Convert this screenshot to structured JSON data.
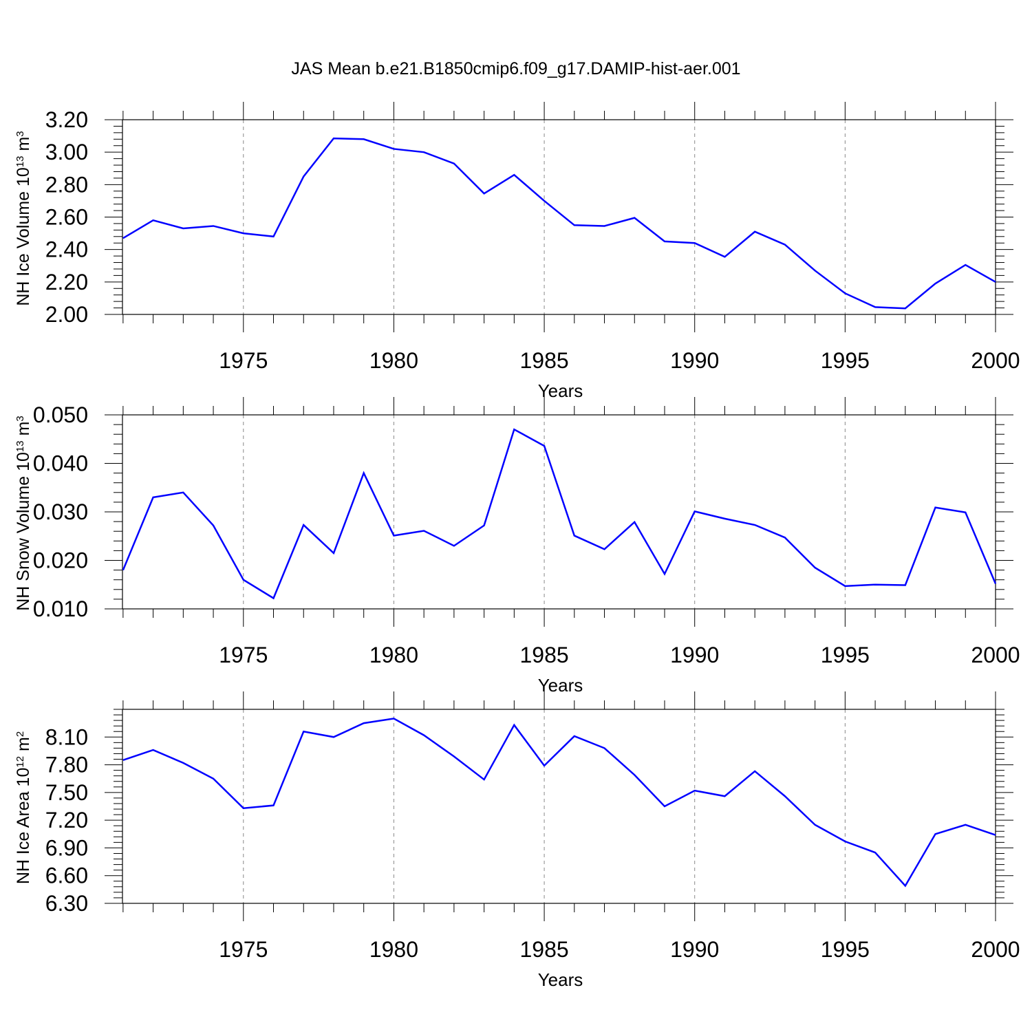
{
  "title": "JAS Mean b.e21.B1850cmip6.f09_g17.DAMIP-hist-aer.001",
  "line_color": "#0000ff",
  "chart_data": [
    {
      "type": "line",
      "ylabel": "NH Ice Volume 10",
      "ylabel_exp": "13",
      "ylabel_unit": " m",
      "ylabel_unit_exp": "3",
      "xlabel": "Years",
      "xlim": [
        1971,
        2000
      ],
      "ylim": [
        2.0,
        3.2
      ],
      "yticks": [
        "2.00",
        "2.20",
        "2.40",
        "2.60",
        "2.80",
        "3.00",
        "3.20"
      ],
      "xticks": [
        "1975",
        "1980",
        "1985",
        "1990",
        "1995",
        "2000"
      ],
      "x": [
        1971,
        1972,
        1973,
        1974,
        1975,
        1976,
        1977,
        1978,
        1979,
        1980,
        1981,
        1982,
        1983,
        1984,
        1985,
        1986,
        1987,
        1988,
        1989,
        1990,
        1991,
        1992,
        1993,
        1994,
        1995,
        1996,
        1997,
        1998,
        1999,
        2000
      ],
      "values": [
        2.47,
        2.58,
        2.53,
        2.545,
        2.5,
        2.48,
        2.85,
        3.085,
        3.08,
        3.02,
        3.0,
        2.93,
        2.745,
        2.86,
        2.7,
        2.55,
        2.545,
        2.595,
        2.45,
        2.44,
        2.355,
        2.51,
        2.43,
        2.27,
        2.13,
        2.045,
        2.037,
        2.19,
        2.305,
        2.2
      ]
    },
    {
      "type": "line",
      "ylabel": "NH Snow Volume 10",
      "ylabel_exp": "13",
      "ylabel_unit": " m",
      "ylabel_unit_exp": "3",
      "xlabel": "Years",
      "xlim": [
        1971,
        2000
      ],
      "ylim": [
        0.01,
        0.05
      ],
      "yticks": [
        "0.010",
        "0.020",
        "0.030",
        "0.040",
        "0.050"
      ],
      "xticks": [
        "1975",
        "1980",
        "1985",
        "1990",
        "1995",
        "2000"
      ],
      "x": [
        1971,
        1972,
        1973,
        1974,
        1975,
        1976,
        1977,
        1978,
        1979,
        1980,
        1981,
        1982,
        1983,
        1984,
        1985,
        1986,
        1987,
        1988,
        1989,
        1990,
        1991,
        1992,
        1993,
        1994,
        1995,
        1996,
        1997,
        1998,
        1999,
        2000
      ],
      "values": [
        0.018,
        0.033,
        0.034,
        0.0272,
        0.016,
        0.0122,
        0.0273,
        0.0215,
        0.038,
        0.0251,
        0.0261,
        0.023,
        0.0272,
        0.047,
        0.0436,
        0.0251,
        0.0223,
        0.0279,
        0.0172,
        0.0301,
        0.0286,
        0.0273,
        0.0247,
        0.0185,
        0.0147,
        0.015,
        0.0149,
        0.0309,
        0.0299,
        0.0152
      ]
    },
    {
      "type": "line",
      "ylabel": "NH Ice Area 10",
      "ylabel_exp": "12",
      "ylabel_unit": " m",
      "ylabel_unit_exp": "2",
      "xlabel": "Years",
      "xlim": [
        1971,
        2000
      ],
      "ylim": [
        6.3,
        8.4
      ],
      "yticks": [
        "6.30",
        "6.60",
        "6.90",
        "7.20",
        "7.50",
        "7.80",
        "8.10"
      ],
      "xticks": [
        "1975",
        "1980",
        "1985",
        "1990",
        "1995",
        "2000"
      ],
      "x": [
        1971,
        1972,
        1973,
        1974,
        1975,
        1976,
        1977,
        1978,
        1979,
        1980,
        1981,
        1982,
        1983,
        1984,
        1985,
        1986,
        1987,
        1988,
        1989,
        1990,
        1991,
        1992,
        1993,
        1994,
        1995,
        1996,
        1997,
        1998,
        1999,
        2000
      ],
      "values": [
        7.85,
        7.96,
        7.82,
        7.65,
        7.33,
        7.36,
        8.16,
        8.1,
        8.25,
        8.3,
        8.12,
        7.89,
        7.64,
        8.23,
        7.79,
        8.11,
        7.98,
        7.69,
        7.35,
        7.52,
        7.46,
        7.73,
        7.46,
        7.15,
        6.97,
        6.85,
        6.49,
        7.05,
        7.15,
        7.04
      ]
    }
  ]
}
